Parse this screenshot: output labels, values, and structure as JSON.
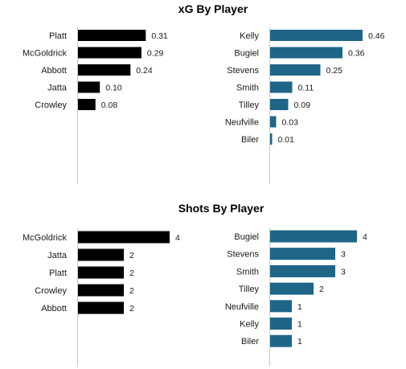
{
  "colors": {
    "left_series": "#000000",
    "right_series": "#1f6587",
    "axis": "#c8c8c8"
  },
  "chart_data": [
    {
      "type": "bar",
      "orientation": "horizontal",
      "title": "xG By Player",
      "panel": "left",
      "categories": [
        "Platt",
        "McGoldrick",
        "Abbott",
        "Jatta",
        "Crowley"
      ],
      "values": [
        0.31,
        0.29,
        0.24,
        0.1,
        0.08
      ],
      "labels": [
        "0.31",
        "0.29",
        "0.24",
        "0.10",
        "0.08"
      ],
      "xlim": [
        0,
        0.5
      ],
      "grid": false,
      "legend": false
    },
    {
      "type": "bar",
      "orientation": "horizontal",
      "title": "",
      "panel": "right",
      "categories": [
        "Kelly",
        "Bugiel",
        "Stevens",
        "Smith",
        "Tilley",
        "Neufville",
        "Biler"
      ],
      "values": [
        0.46,
        0.36,
        0.25,
        0.11,
        0.09,
        0.03,
        0.01
      ],
      "labels": [
        "0.46",
        "0.36",
        "0.25",
        "0.11",
        "0.09",
        "0.03",
        "0.01"
      ],
      "xlim": [
        0,
        0.5
      ],
      "grid": false,
      "legend": false
    },
    {
      "type": "bar",
      "orientation": "horizontal",
      "title": "Shots By Player",
      "panel": "left",
      "categories": [
        "McGoldrick",
        "Jatta",
        "Platt",
        "Crowley",
        "Abbott"
      ],
      "values": [
        4,
        2,
        2,
        2,
        2
      ],
      "labels": [
        "4",
        "2",
        "2",
        "2",
        "2"
      ],
      "xlim": [
        0,
        5.5
      ],
      "grid": false,
      "legend": false
    },
    {
      "type": "bar",
      "orientation": "horizontal",
      "title": "",
      "panel": "right",
      "categories": [
        "Bugiel",
        "Stevens",
        "Smith",
        "Tilley",
        "Neufville",
        "Kelly",
        "Biler"
      ],
      "values": [
        4,
        3,
        3,
        2,
        1,
        1,
        1
      ],
      "labels": [
        "4",
        "3",
        "3",
        "2",
        "1",
        "1",
        "1"
      ],
      "xlim": [
        0,
        5.5
      ],
      "grid": false,
      "legend": false
    }
  ]
}
